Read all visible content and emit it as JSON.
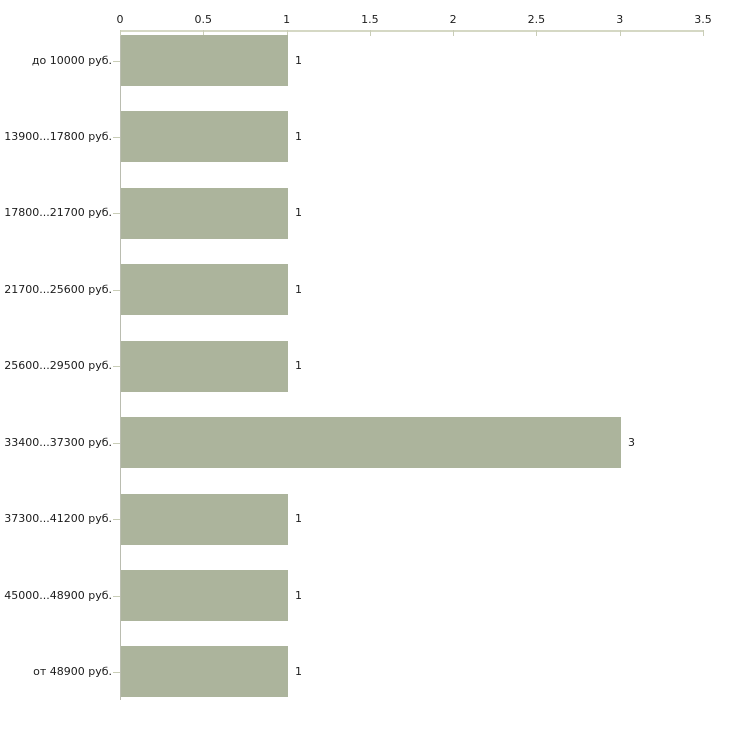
{
  "chart_data": {
    "type": "bar",
    "orientation": "horizontal",
    "title": "",
    "xlabel": "",
    "ylabel": "",
    "categories": [
      "до 10000 руб.",
      "13900...17800 руб.",
      "17800...21700 руб.",
      "21700...25600 руб.",
      "25600...29500 руб.",
      "33400...37300 руб.",
      "37300...41200 руб.",
      "45000...48900 руб.",
      "от 48900 руб."
    ],
    "values": [
      1,
      1,
      1,
      1,
      1,
      3,
      1,
      1,
      1
    ],
    "value_labels": [
      "1",
      "1",
      "1",
      "1",
      "1",
      "3",
      "1",
      "1",
      "1"
    ],
    "xlim": [
      0,
      3.5
    ],
    "x_ticks": [
      0,
      0.5,
      1,
      1.5,
      2,
      2.5,
      3,
      3.5
    ],
    "x_tick_labels": [
      "0",
      "0.5",
      "1",
      "1.5",
      "2",
      "2.5",
      "3",
      "3.5"
    ],
    "axis_position": "top",
    "grid": false,
    "legend": null,
    "colors": {
      "bar_fill": "#acb49c",
      "x_axis_line": "#d5d8c4",
      "y_axis_line": "#babdb0",
      "tick_mark": "#c9cdb7",
      "text": "#1c1c1c",
      "background": "#ffffff"
    }
  }
}
